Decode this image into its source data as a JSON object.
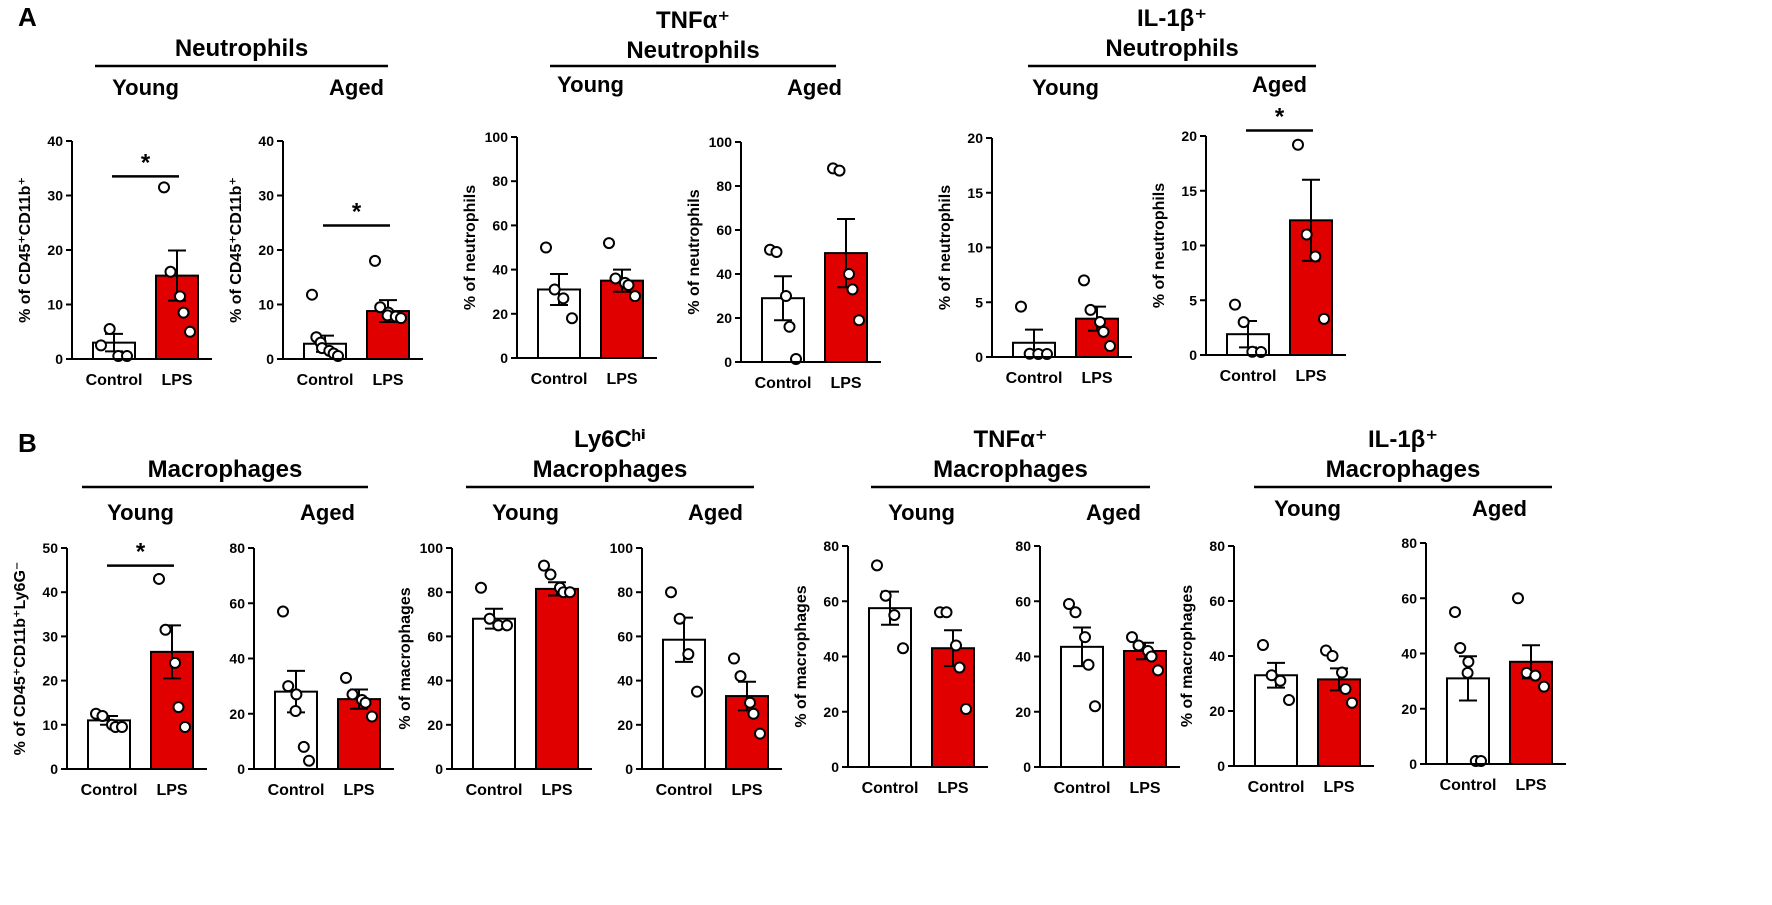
{
  "panels": [
    {
      "label": "A"
    },
    {
      "label": "B"
    }
  ],
  "colors": {
    "control": "#ffffff",
    "lps": "#e00000",
    "axis": "#000000"
  },
  "groups": [
    {
      "title_lines": [
        "Neutrophils"
      ]
    },
    {
      "title_lines": [
        "TNFα⁺",
        "Neutrophils"
      ]
    },
    {
      "title_lines": [
        "IL-1β⁺",
        "Neutrophils"
      ]
    },
    {
      "title_lines": [
        "Macrophages"
      ]
    },
    {
      "title_lines": [
        "Ly6Cʰⁱ",
        "Macrophages"
      ]
    },
    {
      "title_lines": [
        "TNFα⁺",
        "Macrophages"
      ]
    },
    {
      "title_lines": [
        "IL-1β⁺",
        "Macrophages"
      ]
    }
  ],
  "chart_data": [
    {
      "type": "bar",
      "group": 0,
      "title": "Young",
      "ylabel": "% of CD45⁺CD11b⁺",
      "categories": [
        "Control",
        "LPS"
      ],
      "ylim": [
        0,
        40
      ],
      "yticks": [
        0,
        10,
        20,
        30,
        40
      ],
      "values": [
        3,
        15.3
      ],
      "sem": [
        1.6,
        4.6
      ],
      "points": [
        [
          2.5,
          5.5,
          0.5,
          0.5
        ],
        [
          31.5,
          16,
          11.5,
          8.5,
          5
        ]
      ],
      "significance": "*"
    },
    {
      "type": "bar",
      "group": 0,
      "title": "Aged",
      "ylabel": "% of CD45⁺CD11b⁺",
      "categories": [
        "Control",
        "LPS"
      ],
      "ylim": [
        0,
        40
      ],
      "yticks": [
        0,
        10,
        20,
        30,
        40
      ],
      "values": [
        2.8,
        8.8
      ],
      "sem": [
        1.5,
        2
      ],
      "points": [
        [
          11.8,
          4,
          3,
          2,
          1.5,
          1,
          0.5
        ],
        [
          18,
          9.5,
          8.5,
          8,
          7.8,
          7.5
        ]
      ],
      "significance": "*"
    },
    {
      "type": "bar",
      "group": 1,
      "title": "Young",
      "ylabel": "% of neutrophils",
      "categories": [
        "Control",
        "LPS"
      ],
      "ylim": [
        0,
        100
      ],
      "yticks": [
        0,
        20,
        40,
        60,
        80,
        100
      ],
      "values": [
        31,
        35
      ],
      "sem": [
        7,
        5
      ],
      "points": [
        [
          50,
          31,
          27,
          18
        ],
        [
          52,
          36,
          34,
          33,
          28
        ]
      ],
      "significance": ""
    },
    {
      "type": "bar",
      "group": 1,
      "title": "Aged",
      "ylabel": "% of neutrophils",
      "categories": [
        "Control",
        "LPS"
      ],
      "ylim": [
        0,
        100
      ],
      "yticks": [
        0,
        20,
        40,
        60,
        80,
        100
      ],
      "values": [
        29,
        49.5
      ],
      "sem": [
        10,
        15.5
      ],
      "points": [
        [
          51,
          50,
          30,
          16,
          0.5
        ],
        [
          88,
          87,
          40,
          33,
          19
        ]
      ],
      "significance": ""
    },
    {
      "type": "bar",
      "group": 2,
      "title": "Young",
      "ylabel": "% of neutrophils",
      "categories": [
        "Control",
        "LPS"
      ],
      "ylim": [
        0,
        20
      ],
      "yticks": [
        0,
        5,
        10,
        15,
        20
      ],
      "values": [
        1.3,
        3.5
      ],
      "sem": [
        1.2,
        1.1
      ],
      "points": [
        [
          4.6,
          0.3,
          0.2,
          0.2
        ],
        [
          7,
          4.3,
          3.2,
          2.3,
          1
        ]
      ],
      "significance": ""
    },
    {
      "type": "bar",
      "group": 2,
      "title": "Aged",
      "ylabel": "% of neutrophils",
      "categories": [
        "Control",
        "LPS"
      ],
      "ylim": [
        0,
        20
      ],
      "yticks": [
        0,
        5,
        10,
        15,
        20
      ],
      "values": [
        1.9,
        12.3
      ],
      "sem": [
        1.2,
        3.7
      ],
      "points": [
        [
          4.6,
          3,
          0.3,
          0.2
        ],
        [
          19.2,
          11,
          9,
          3.3
        ]
      ],
      "significance": "*"
    },
    {
      "type": "bar",
      "group": 3,
      "title": "Young",
      "ylabel": "% of CD45⁺CD11b⁺Ly6G⁻",
      "categories": [
        "Control",
        "LPS"
      ],
      "ylim": [
        0,
        50
      ],
      "yticks": [
        0,
        10,
        20,
        30,
        40,
        50
      ],
      "values": [
        11,
        26.5
      ],
      "sem": [
        1,
        6
      ],
      "points": [
        [
          12.5,
          12,
          10,
          9.5,
          9.5
        ],
        [
          43,
          31.5,
          24,
          14,
          9.5
        ]
      ],
      "significance": "*"
    },
    {
      "type": "bar",
      "group": 3,
      "title": "Aged",
      "ylabel": "",
      "categories": [
        "Control",
        "LPS"
      ],
      "ylim": [
        0,
        80
      ],
      "yticks": [
        0,
        20,
        40,
        60,
        80
      ],
      "values": [
        28,
        25.3
      ],
      "sem": [
        7.5,
        3.5
      ],
      "points": [
        [
          57,
          30,
          27,
          21,
          8,
          3
        ],
        [
          33,
          27,
          25,
          24,
          19
        ]
      ],
      "significance": ""
    },
    {
      "type": "bar",
      "group": 4,
      "title": "Young",
      "ylabel": "% of macrophages",
      "categories": [
        "Control",
        "LPS"
      ],
      "ylim": [
        0,
        100
      ],
      "yticks": [
        0,
        20,
        40,
        60,
        80,
        100
      ],
      "values": [
        68,
        81.5
      ],
      "sem": [
        4.5,
        3
      ],
      "points": [
        [
          82,
          68,
          65,
          65
        ],
        [
          92,
          88,
          82,
          80,
          80
        ]
      ],
      "significance": ""
    },
    {
      "type": "bar",
      "group": 4,
      "title": "Aged",
      "ylabel": "",
      "categories": [
        "Control",
        "LPS"
      ],
      "ylim": [
        0,
        100
      ],
      "yticks": [
        0,
        20,
        40,
        60,
        80,
        100
      ],
      "values": [
        58.5,
        33
      ],
      "sem": [
        10,
        6.5
      ],
      "points": [
        [
          80,
          68,
          52,
          35
        ],
        [
          50,
          42,
          30,
          25,
          16
        ]
      ],
      "significance": ""
    },
    {
      "type": "bar",
      "group": 5,
      "title": "Young",
      "ylabel": "% of macrophages",
      "categories": [
        "Control",
        "LPS"
      ],
      "ylim": [
        0,
        80
      ],
      "yticks": [
        0,
        20,
        40,
        60,
        80
      ],
      "values": [
        57.5,
        43
      ],
      "sem": [
        6,
        6.5
      ],
      "points": [
        [
          73,
          62,
          55,
          43
        ],
        [
          56,
          56,
          44,
          36,
          21
        ]
      ],
      "significance": ""
    },
    {
      "type": "bar",
      "group": 5,
      "title": "Aged",
      "ylabel": "",
      "categories": [
        "Control",
        "LPS"
      ],
      "ylim": [
        0,
        80
      ],
      "yticks": [
        0,
        20,
        40,
        60,
        80
      ],
      "values": [
        43.5,
        42
      ],
      "sem": [
        7,
        3
      ],
      "points": [
        [
          59,
          56,
          47,
          37,
          22
        ],
        [
          47,
          44,
          42,
          40,
          35
        ]
      ],
      "significance": ""
    },
    {
      "type": "bar",
      "group": 6,
      "title": "Young",
      "ylabel": "% of macrophages",
      "categories": [
        "Control",
        "LPS"
      ],
      "ylim": [
        0,
        80
      ],
      "yticks": [
        0,
        20,
        40,
        60,
        80
      ],
      "values": [
        33,
        31.5
      ],
      "sem": [
        4.5,
        4
      ],
      "points": [
        [
          44,
          33,
          31,
          24
        ],
        [
          42,
          40,
          34,
          28,
          23
        ]
      ],
      "significance": ""
    },
    {
      "type": "bar",
      "group": 6,
      "title": "Aged",
      "ylabel": "",
      "categories": [
        "Control",
        "LPS"
      ],
      "ylim": [
        0,
        80
      ],
      "yticks": [
        0,
        20,
        40,
        60,
        80
      ],
      "values": [
        31,
        37
      ],
      "sem": [
        8,
        6
      ],
      "points": [
        [
          55,
          42,
          37,
          33,
          0.5,
          0.5
        ],
        [
          60,
          33,
          32,
          28
        ]
      ],
      "significance": ""
    }
  ]
}
